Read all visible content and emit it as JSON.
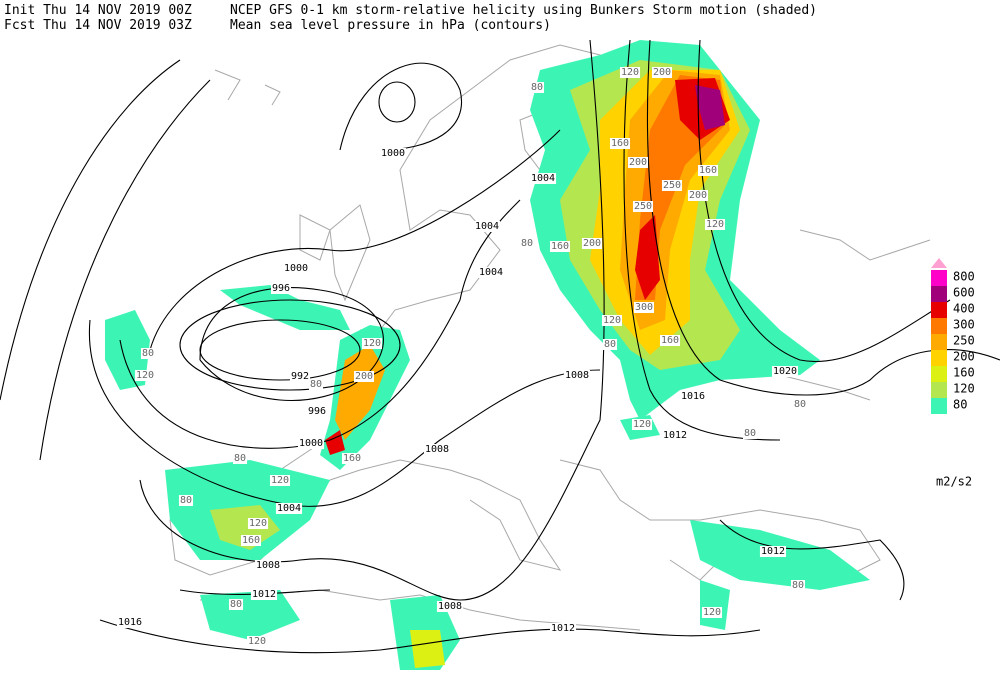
{
  "header": {
    "init": "Init  Thu 14 NOV 2019 00Z",
    "fcst": "Fcst Thu 14 NOV 2019 03Z",
    "title": "NCEP GFS 0-1 km storm-relative helicity using Bunkers Storm motion (shaded)",
    "subtitle": "Mean sea level pressure in hPa (contours)"
  },
  "legend": {
    "levels": [
      80,
      120,
      160,
      200,
      250,
      300,
      400,
      600,
      800
    ],
    "colors": [
      "#3cf5b4",
      "#b4e650",
      "#dcf014",
      "#ffd200",
      "#ffaa00",
      "#ff7800",
      "#e60000",
      "#a0007a",
      "#ff00c8"
    ],
    "unit": "m2/s2"
  },
  "pressure_labels": [
    1000,
    1004,
    1004,
    1004,
    1000,
    996,
    992,
    996,
    1000,
    1008,
    1008,
    1016,
    1012,
    1020,
    1004,
    1008,
    1012,
    1016,
    1008,
    1012,
    1012
  ],
  "helicity_labels": [
    80,
    120,
    200,
    160,
    200,
    250,
    200,
    160,
    120,
    250,
    200,
    160,
    80,
    120,
    300,
    160,
    80,
    200,
    120,
    160,
    120,
    80,
    80,
    120,
    80,
    120,
    160,
    80,
    120,
    80,
    80,
    120,
    80,
    120,
    80
  ]
}
